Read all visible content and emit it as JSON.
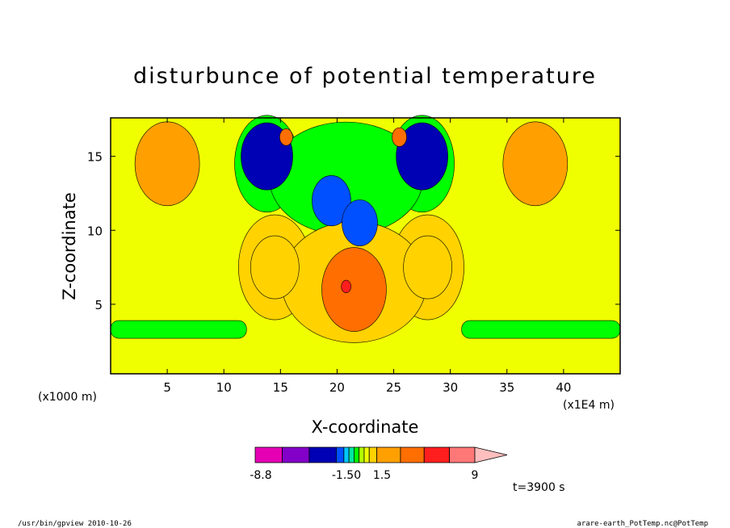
{
  "chart_data": {
    "type": "heatmap",
    "title": "disturbunce of potential temperature",
    "xlabel": "X-coordinate",
    "ylabel": "Z-coordinate",
    "x_unit": "(x1E4 m)",
    "y_unit": "(x1000 m)",
    "xlim": [
      0,
      45
    ],
    "ylim": [
      0.3,
      17.6
    ],
    "x_ticks": [
      5,
      10,
      15,
      20,
      25,
      30,
      35,
      40
    ],
    "y_ticks": [
      5,
      10,
      15
    ],
    "time_label": "t=3900 s",
    "colorbar": {
      "levels": [
        -8.8,
        -1.5,
        1.5,
        9
      ],
      "tick_labels": [
        "-8.8",
        "-1.50",
        "1.5",
        "9"
      ],
      "colors": [
        "#e600b4",
        "#8200c8",
        "#0000b4",
        "#0050ff",
        "#00c8ff",
        "#00e6a0",
        "#00ff00",
        "#b4ff00",
        "#f0ff00",
        "#ffd200",
        "#ffa000",
        "#ff6e00",
        "#ff1e1e",
        "#ff7878",
        "#ffbebe"
      ]
    },
    "features": [
      {
        "x": 5,
        "z": 14.5,
        "value": 1.2
      },
      {
        "x": 37.5,
        "z": 14.5,
        "value": 1.2
      },
      {
        "x": 13.8,
        "z": 15.0,
        "value": -3.5
      },
      {
        "x": 27.5,
        "z": 15.0,
        "value": -3.5
      },
      {
        "x": 19.5,
        "z": 12.0,
        "value": -2.2
      },
      {
        "x": 22.0,
        "z": 10.5,
        "value": -2.5
      },
      {
        "x": 14.5,
        "z": 7.5,
        "value": 0.9
      },
      {
        "x": 28.0,
        "z": 7.5,
        "value": 0.9
      },
      {
        "x": 21.5,
        "z": 6.0,
        "value": 2.6
      },
      {
        "x": 20.8,
        "z": 6.2,
        "value": 5.0
      },
      {
        "x": 25.5,
        "z": 16.3,
        "value": 2.8
      },
      {
        "x": 15.5,
        "z": 16.3,
        "value": 2.2
      },
      {
        "x": 5,
        "z": 3.5,
        "value": -0.6
      },
      {
        "x": 40,
        "z": 3.5,
        "value": -0.6
      }
    ]
  },
  "footer": {
    "left": "/usr/bin/gpview   2010-10-26",
    "right": "arare-earth_PotTemp.nc@PotTemp"
  }
}
